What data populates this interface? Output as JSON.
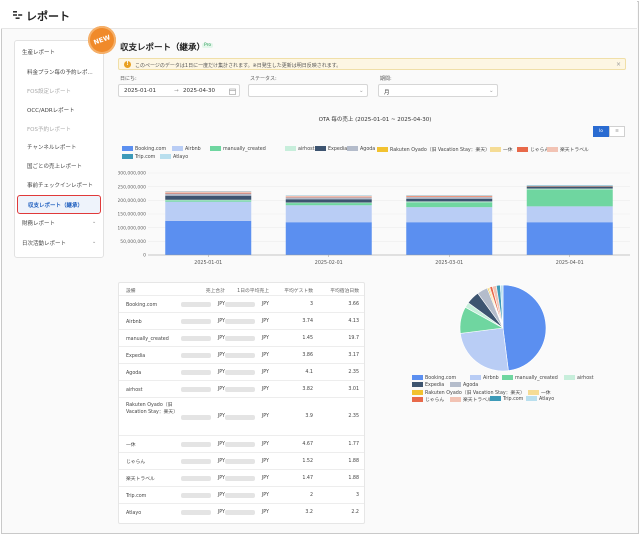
{
  "app": {
    "title": "レポート"
  },
  "sidebar": {
    "items": [
      {
        "label": "生産レポート",
        "type": "group",
        "expanded": true
      },
      {
        "label": "料金プラン毎の予約レポ...",
        "type": "sub"
      },
      {
        "label": "FOS設定レポート",
        "type": "sub",
        "muted": true
      },
      {
        "label": "OCC/ADRレポート",
        "type": "sub"
      },
      {
        "label": "FOS予約レポート",
        "type": "sub",
        "muted": true
      },
      {
        "label": "チャンネルレポート",
        "type": "sub"
      },
      {
        "label": "国ごとの売上レポート",
        "type": "sub"
      },
      {
        "label": "事前チェックインレポート",
        "type": "sub"
      },
      {
        "label": "収支レポート（継承）",
        "type": "sub",
        "active": true
      },
      {
        "label": "財務レポート",
        "type": "group"
      },
      {
        "label": "日次活動レポート",
        "type": "group"
      }
    ]
  },
  "page": {
    "badge": "NEW",
    "title": "収支レポート（継承）",
    "tag": "Pro",
    "alert": "このページのデータは1日に一度だけ集計されます。※日発生した更新は明日反映されます。"
  },
  "filters": {
    "date_label": "日にち:",
    "date_start": "2025-01-01",
    "date_sep": "→",
    "date_end": "2025-04-30",
    "status_label": "ステータス:",
    "status_value": "",
    "period_label": "期間:",
    "period_value": "月"
  },
  "view_tabs": {
    "chart": "lo",
    "table": "≡"
  },
  "colors": {
    "Booking.com": "#5b8ff0",
    "Airbnb": "#b9cdf5",
    "manually_created": "#6fd6a0",
    "airhost": "#c7eedb",
    "Expedia": "#3d5470",
    "Agoda": "#b4bccb",
    "Rakuten Oyado（旧 Vacation Stay：楽天）": "#f2c230",
    "一休": "#f5dc95",
    "じゃらん": "#e8694a",
    "楽天トラベル": "#f2c3b4",
    "Trip.com": "#3d9ab8",
    "Atlayo": "#b9dfee"
  },
  "chart_data": [
    {
      "type": "bar",
      "stacked": true,
      "title": "OTA 毎の売上 (2025-01-01 ~ 2025-04-30)",
      "categories": [
        "2025-01-01",
        "2025-02-01",
        "2025-03-01",
        "2025-04-01"
      ],
      "y_ticks": [
        "300,000,000",
        "250,000,000",
        "200,000,000",
        "150,000,000",
        "100,000,000",
        "50,000,000",
        "0"
      ],
      "ylim": [
        0,
        300000000
      ],
      "grid": true,
      "legend_position": "top",
      "series": [
        {
          "name": "Booking.com",
          "values": [
            125000000,
            120000000,
            120000000,
            120000000
          ]
        },
        {
          "name": "Airbnb",
          "values": [
            70000000,
            62000000,
            55000000,
            58000000
          ]
        },
        {
          "name": "manually_created",
          "values": [
            5000000,
            8000000,
            18000000,
            62000000
          ]
        },
        {
          "name": "airhost",
          "values": [
            2000000,
            2000000,
            3000000,
            3000000
          ]
        },
        {
          "name": "Expedia",
          "values": [
            15000000,
            12000000,
            10000000,
            6000000
          ]
        },
        {
          "name": "Agoda",
          "values": [
            8000000,
            7000000,
            6000000,
            0
          ]
        },
        {
          "name": "Rakuten Oyado（旧 Vacation Stay：楽天）",
          "values": [
            0,
            0,
            0,
            0
          ]
        },
        {
          "name": "一休",
          "values": [
            0,
            0,
            0,
            0
          ]
        },
        {
          "name": "じゃらん",
          "values": [
            2000000,
            2000000,
            2000000,
            2000000
          ]
        },
        {
          "name": "楽天トラベル",
          "values": [
            5000000,
            3000000,
            3000000,
            0
          ]
        },
        {
          "name": "Trip.com",
          "values": [
            1000000,
            1000000,
            1000000,
            3000000
          ]
        },
        {
          "name": "Atlayo",
          "values": [
            0,
            0,
            0,
            0
          ]
        }
      ]
    },
    {
      "type": "pie",
      "legend_position": "bottom",
      "labels": [
        "Booking.com",
        "Airbnb",
        "manually_created",
        "airhost",
        "Expedia",
        "Agoda",
        "Rakuten Oyado（旧 Vacation Stay：楽天）",
        "一休",
        "じゃらん",
        "楽天トラベル",
        "Trip.com",
        "Atlayo"
      ],
      "values": [
        48,
        25,
        10,
        2,
        5,
        4,
        0.5,
        0.5,
        1,
        1.5,
        1.5,
        1
      ]
    },
    {
      "type": "table",
      "columns": [
        "設備",
        "売上合計",
        "1日の平均売上",
        "平均ゲスト数",
        "平均宿泊日数"
      ],
      "rows": [
        [
          "Booking.com",
          "JPY",
          "JPY",
          "3",
          "3.66"
        ],
        [
          "Airbnb",
          "JPY",
          "JPY",
          "3.74",
          "4.13"
        ],
        [
          "manually_created",
          "JPY",
          "JPY",
          "1.45",
          "19.7"
        ],
        [
          "Expedia",
          "JPY",
          "JPY",
          "3.86",
          "3.17"
        ],
        [
          "Agoda",
          "JPY",
          "JPY",
          "4.1",
          "2.35"
        ],
        [
          "airhost",
          "JPY",
          "JPY",
          "3.82",
          "3.01"
        ],
        [
          "Rakuten Oyado（旧 Vacation Stay：楽天）",
          "JPY",
          "JPY",
          "3.9",
          "2.35"
        ],
        [
          "一休",
          "JPY",
          "JPY",
          "4.67",
          "1.77"
        ],
        [
          "じゃらん",
          "JPY",
          "JPY",
          "1.52",
          "1.88"
        ],
        [
          "楽天トラベル",
          "JPY",
          "JPY",
          "1.47",
          "1.88"
        ],
        [
          "Trip.com",
          "JPY",
          "JPY",
          "2",
          "3"
        ],
        [
          "Atlayo",
          "JPY",
          "JPY",
          "3.2",
          "2.2"
        ]
      ]
    }
  ]
}
